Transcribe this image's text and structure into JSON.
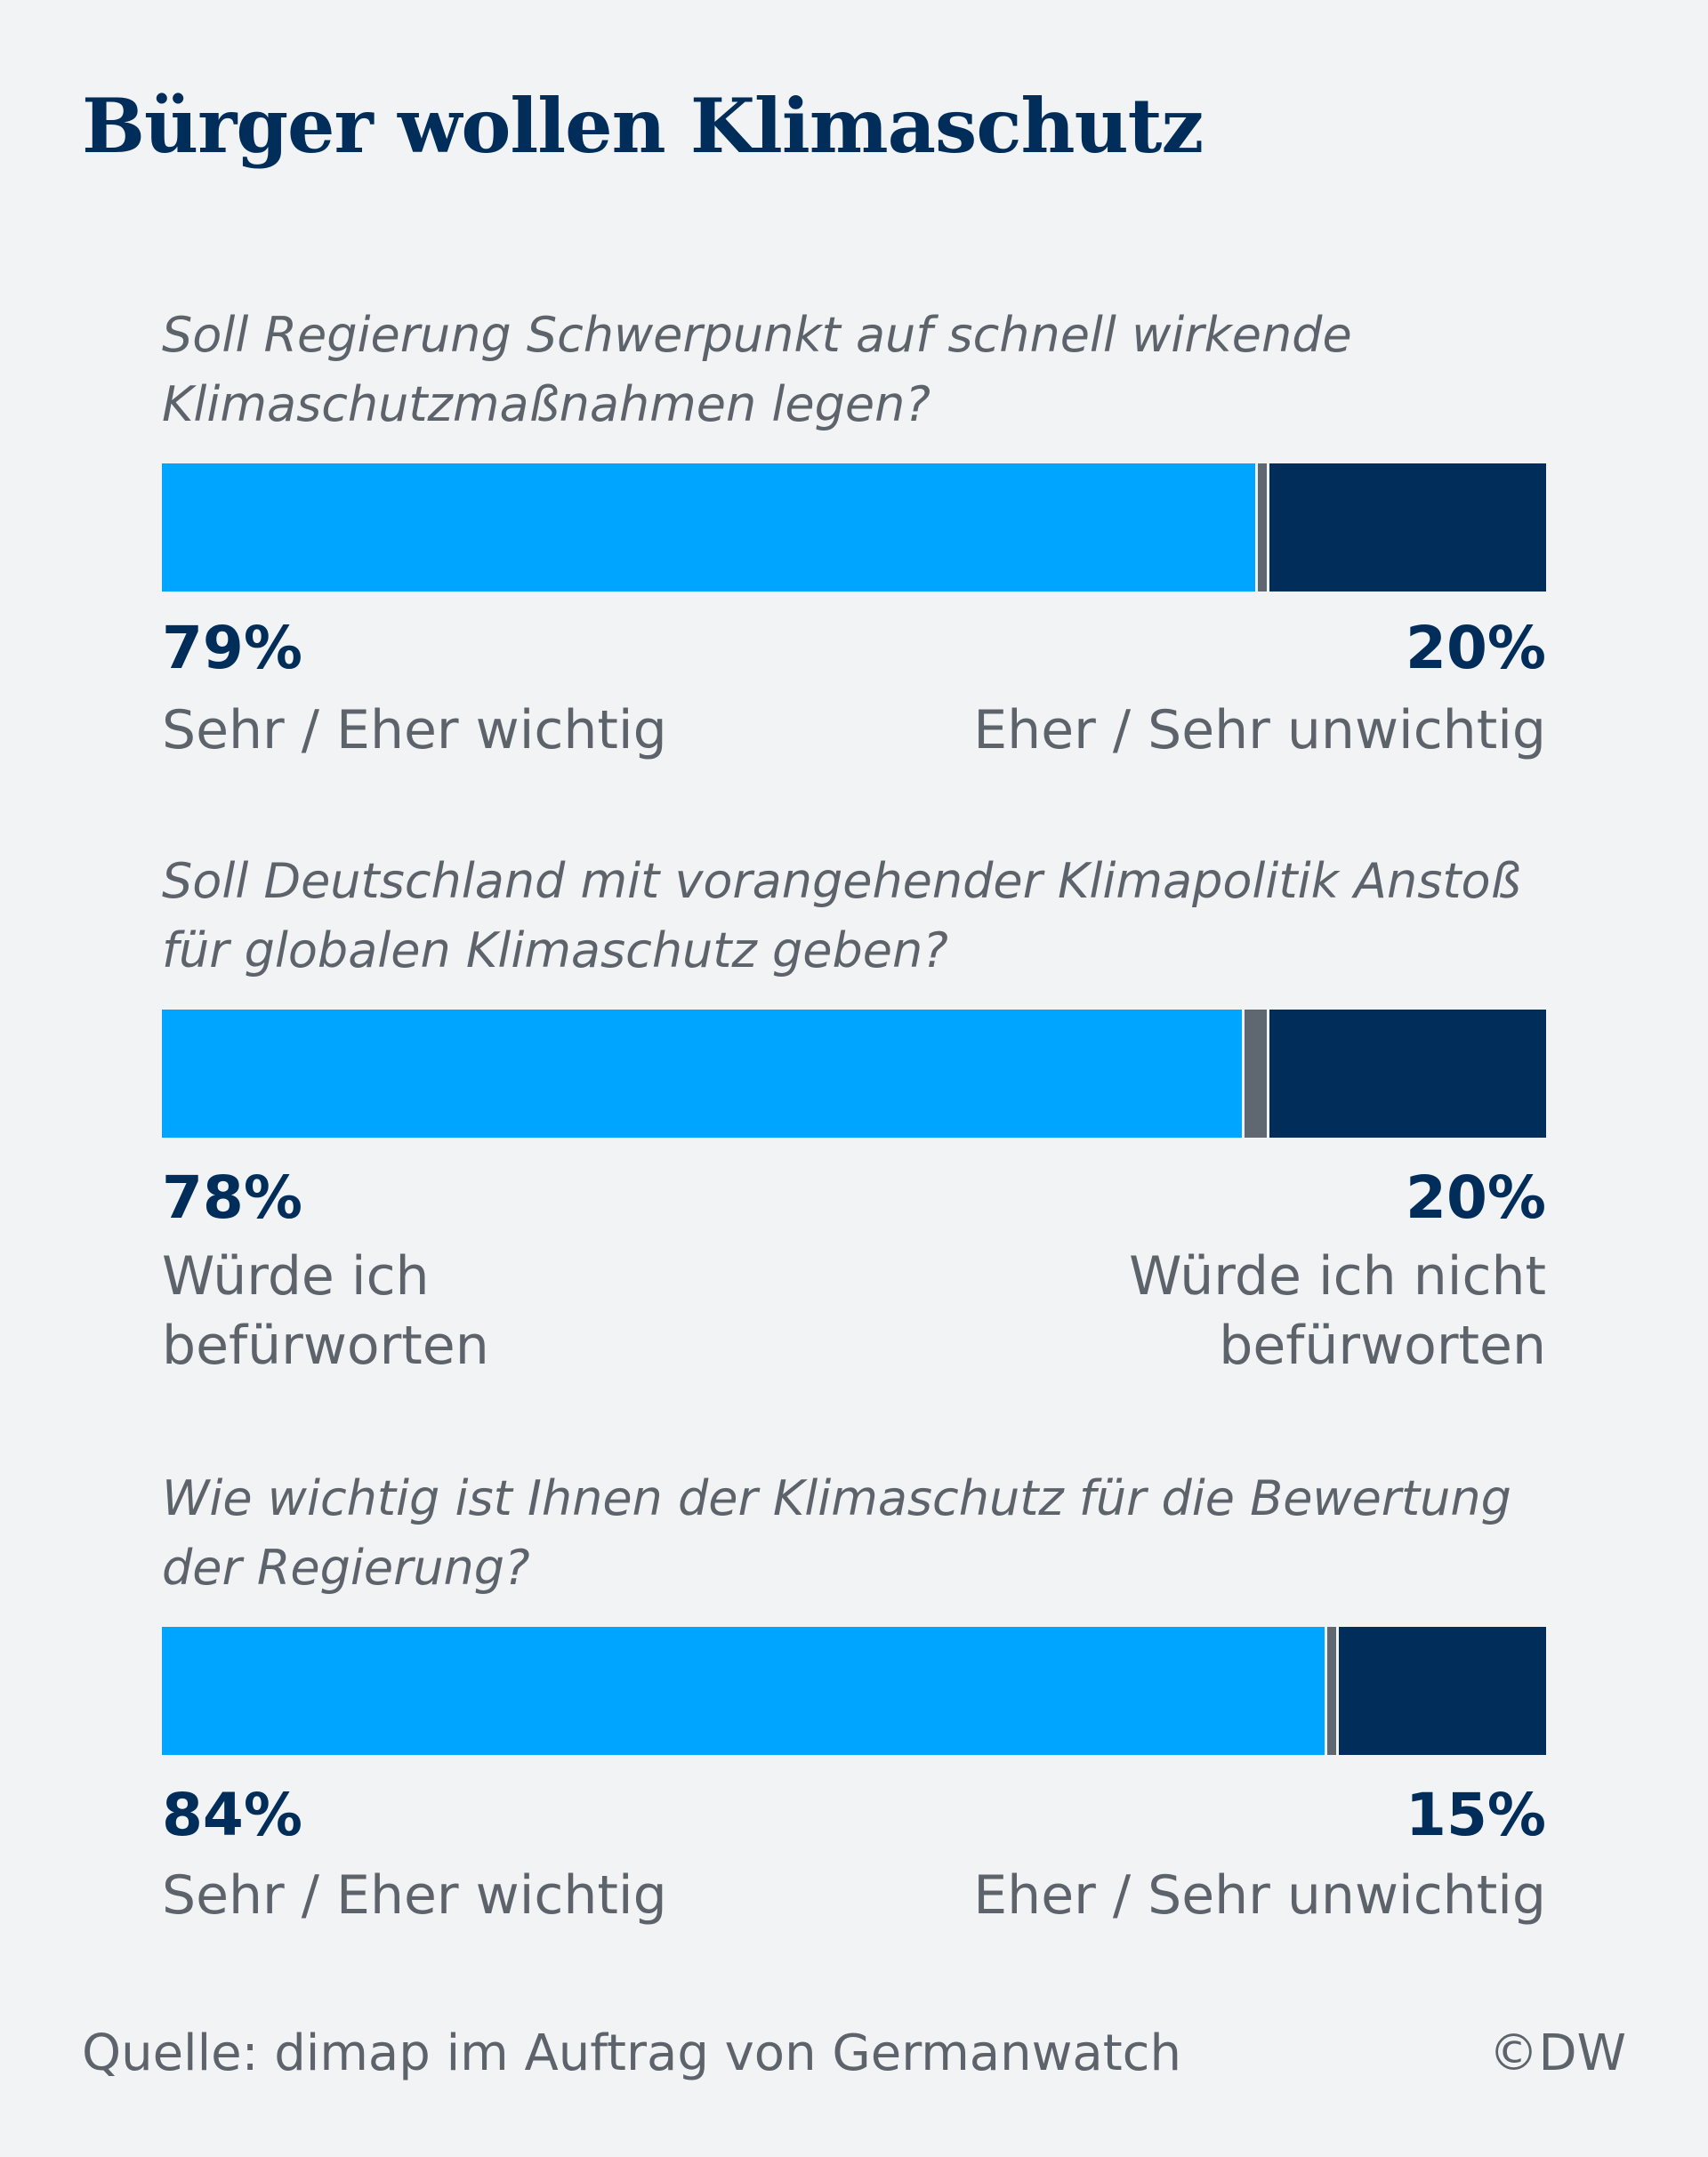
{
  "title": "Bürger wollen Klimaschutz",
  "source": "Quelle: dimap im Auftrag von Germanwatch",
  "credit": "©DW",
  "colors": {
    "positive": "#00a5ff",
    "neutral": "#5f6770",
    "negative": "#002d5a",
    "background": "#f2f3f5",
    "text_dark": "#002d5a",
    "text_gray": "#5d636b"
  },
  "chart_data": {
    "type": "bar",
    "stacked": true,
    "orientation": "horizontal",
    "title": "Bürger wollen Klimaschutz",
    "series_names": [
      "positive",
      "undecided",
      "negative"
    ],
    "items": [
      {
        "question": "Soll Regierung Schwerpunkt auf schnell wirkende Klimaschutzmaßnahmen legen?",
        "positive": 79,
        "neutral": 1,
        "negative": 20,
        "positive_label": "79%",
        "negative_label": "20%",
        "positive_text": "Sehr / Eher wichtig",
        "negative_text": "Eher / Sehr unwichtig"
      },
      {
        "question": "Soll Deutschland mit vorangehender Klimapolitik Anstoß für globalen Klimaschutz geben?",
        "positive": 78,
        "neutral": 2,
        "negative": 20,
        "positive_label": "78%",
        "negative_label": "20%",
        "positive_text": "Würde ich befürworten",
        "negative_text": "Würde ich nicht befürworten"
      },
      {
        "question": "Wie wichtig ist Ihnen der Klimaschutz für die Bewertung der Regierung?",
        "positive": 84,
        "neutral": 1,
        "negative": 15,
        "positive_label": "84%",
        "negative_label": "15%",
        "positive_text": "Sehr / Eher wichtig",
        "negative_text": "Eher / Sehr unwichtig"
      }
    ]
  }
}
